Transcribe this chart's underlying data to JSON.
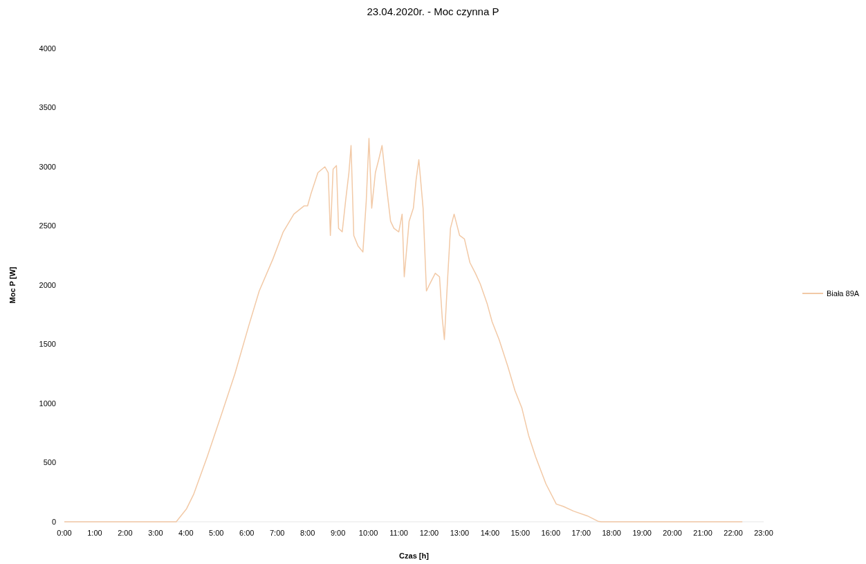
{
  "chart_data": {
    "type": "line",
    "title": "23.04.2020r. - Moc czynna P",
    "xlabel": "Czas [h]",
    "ylabel": "Moc P [W]",
    "xlim": [
      0,
      23
    ],
    "ylim": [
      0,
      4000
    ],
    "xticks": [
      {
        "value": 0,
        "label": "0:00"
      },
      {
        "value": 1,
        "label": "1:00"
      },
      {
        "value": 2,
        "label": "2:00"
      },
      {
        "value": 3,
        "label": "3:00"
      },
      {
        "value": 4,
        "label": "4:00"
      },
      {
        "value": 5,
        "label": "5:00"
      },
      {
        "value": 6,
        "label": "6:00"
      },
      {
        "value": 7,
        "label": "7:00"
      },
      {
        "value": 8,
        "label": "8:00"
      },
      {
        "value": 9,
        "label": "9:00"
      },
      {
        "value": 10,
        "label": "10:00"
      },
      {
        "value": 11,
        "label": "11:00"
      },
      {
        "value": 12,
        "label": "12:00"
      },
      {
        "value": 13,
        "label": "13:00"
      },
      {
        "value": 14,
        "label": "14:00"
      },
      {
        "value": 15,
        "label": "15:00"
      },
      {
        "value": 16,
        "label": "16:00"
      },
      {
        "value": 17,
        "label": "17:00"
      },
      {
        "value": 18,
        "label": "18:00"
      },
      {
        "value": 19,
        "label": "19:00"
      },
      {
        "value": 20,
        "label": "20:00"
      },
      {
        "value": 21,
        "label": "21:00"
      },
      {
        "value": 22,
        "label": "22:00"
      },
      {
        "value": 23,
        "label": "23:00"
      }
    ],
    "yticks": [
      0,
      500,
      1000,
      1500,
      2000,
      2500,
      3000,
      3500,
      4000
    ],
    "legend": "right",
    "grid": false,
    "x": [
      0,
      3.68,
      4.02,
      4.25,
      4.7,
      5.16,
      5.61,
      6.07,
      6.41,
      6.86,
      7.2,
      7.55,
      7.89,
      8.0,
      8.11,
      8.34,
      8.57,
      8.68,
      8.75,
      8.84,
      8.95,
      9.02,
      9.14,
      9.25,
      9.36,
      9.43,
      9.52,
      9.66,
      9.82,
      9.93,
      10.02,
      10.11,
      10.23,
      10.34,
      10.45,
      10.57,
      10.73,
      10.84,
      11.0,
      11.11,
      11.18,
      11.34,
      11.48,
      11.57,
      11.66,
      11.8,
      11.91,
      12.02,
      12.2,
      12.34,
      12.43,
      12.5,
      12.61,
      12.7,
      12.82,
      13.0,
      13.16,
      13.34,
      13.52,
      13.68,
      13.91,
      14.07,
      14.3,
      14.59,
      14.82,
      15.05,
      15.27,
      15.5,
      15.84,
      16.18,
      16.41,
      16.75,
      17.2,
      17.55,
      17.66,
      22.3
    ],
    "series": [
      {
        "name": "Biała 89A",
        "color": "#f2c9a6",
        "values": [
          0,
          0,
          110,
          230,
          550,
          900,
          1250,
          1660,
          1950,
          2220,
          2450,
          2600,
          2670,
          2670,
          2770,
          2950,
          3000,
          2950,
          2420,
          2980,
          3010,
          2480,
          2450,
          2710,
          2950,
          3180,
          2420,
          2330,
          2280,
          2710,
          3240,
          2650,
          2950,
          3060,
          3180,
          2890,
          2540,
          2480,
          2450,
          2600,
          2070,
          2540,
          2650,
          2890,
          3060,
          2650,
          1950,
          2010,
          2100,
          2070,
          1720,
          1540,
          2070,
          2480,
          2600,
          2420,
          2390,
          2190,
          2100,
          2010,
          1840,
          1690,
          1540,
          1310,
          1110,
          960,
          730,
          550,
          320,
          150,
          130,
          90,
          50,
          5,
          0,
          0
        ]
      }
    ]
  }
}
